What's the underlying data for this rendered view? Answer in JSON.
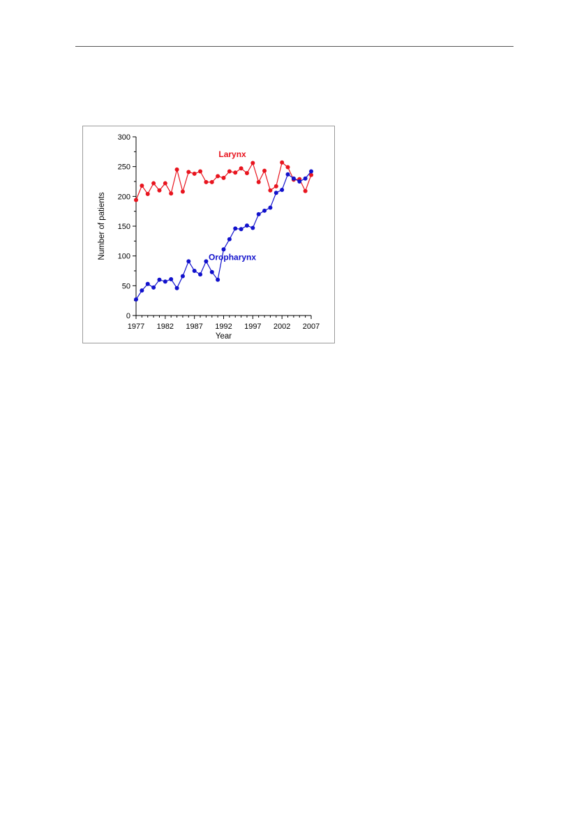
{
  "chart_data": {
    "type": "line",
    "xlabel": "Year",
    "ylabel": "Number of patients",
    "xlim": [
      1977,
      2007
    ],
    "ylim": [
      0,
      300
    ],
    "xticks": [
      1977,
      1982,
      1987,
      1992,
      1997,
      2002,
      2007
    ],
    "yticks": [
      0,
      50,
      100,
      150,
      200,
      250,
      300
    ],
    "grid": false,
    "legend": "inline labels",
    "x": [
      1977,
      1978,
      1979,
      1980,
      1981,
      1982,
      1983,
      1984,
      1985,
      1986,
      1987,
      1988,
      1989,
      1990,
      1991,
      1992,
      1993,
      1994,
      1995,
      1996,
      1997,
      1998,
      1999,
      2000,
      2001,
      2002,
      2003,
      2004,
      2005,
      2006,
      2007
    ],
    "series": [
      {
        "name": "Larynx",
        "color": "#e8141e",
        "label_at": [
          1993.5,
          266
        ],
        "values": [
          194,
          218,
          204,
          222,
          210,
          222,
          205,
          245,
          208,
          241,
          238,
          242,
          224,
          224,
          234,
          231,
          242,
          240,
          247,
          239,
          256,
          224,
          243,
          210,
          217,
          257,
          249,
          228,
          229,
          209,
          236
        ]
      },
      {
        "name": "Oropharynx",
        "color": "#1111cc",
        "label_at": [
          1993.5,
          93
        ],
        "values": [
          27,
          42,
          53,
          47,
          60,
          57,
          61,
          46,
          66,
          91,
          75,
          69,
          91,
          73,
          60,
          111,
          128,
          146,
          145,
          151,
          147,
          170,
          176,
          181,
          206,
          211,
          237,
          230,
          225,
          230,
          242
        ]
      }
    ]
  }
}
